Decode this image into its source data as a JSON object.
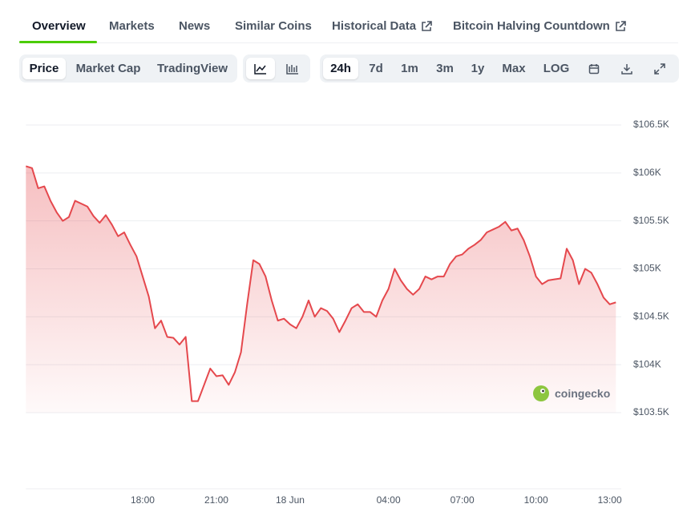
{
  "tabs": [
    "Overview",
    "Markets",
    "News",
    "Similar Coins",
    "Historical Data",
    "Bitcoin Halving Countdown"
  ],
  "chart_modes": [
    "Price",
    "Market Cap",
    "TradingView"
  ],
  "ranges": [
    "24h",
    "7d",
    "1m",
    "3m",
    "1y",
    "Max",
    "LOG"
  ],
  "watermark": "coingecko",
  "chart_data": {
    "type": "line",
    "categories": [
      null,
      null,
      null,
      null,
      null,
      null,
      null,
      null,
      null,
      null,
      null,
      null,
      null,
      null,
      null,
      null,
      null,
      null,
      null,
      "18:00",
      null,
      null,
      null,
      null,
      null,
      null,
      null,
      null,
      null,
      null,
      null,
      "21:00",
      null,
      null,
      null,
      null,
      null,
      null,
      null,
      null,
      null,
      null,
      null,
      "18 Jun",
      null,
      null,
      null,
      null,
      null,
      null,
      null,
      null,
      null,
      null,
      null,
      null,
      null,
      null,
      null,
      "04:00",
      null,
      null,
      null,
      null,
      null,
      null,
      null,
      null,
      null,
      null,
      null,
      "07:00",
      null,
      null,
      null,
      null,
      null,
      null,
      null,
      null,
      null,
      null,
      null,
      "10:00",
      null,
      null,
      null,
      null,
      null,
      null,
      null,
      null,
      null,
      null,
      null,
      "13:00",
      null
    ],
    "values": [
      106070,
      106050,
      105840,
      105860,
      105710,
      105590,
      105500,
      105540,
      105710,
      105680,
      105650,
      105550,
      105480,
      105560,
      105460,
      105340,
      105380,
      105250,
      105130,
      104920,
      104710,
      104380,
      104460,
      104290,
      104280,
      104210,
      104290,
      103620,
      103620,
      103790,
      103960,
      103880,
      103890,
      103790,
      103920,
      104130,
      104630,
      105090,
      105050,
      104920,
      104670,
      104460,
      104480,
      104420,
      104380,
      104500,
      104670,
      104500,
      104590,
      104560,
      104480,
      104340,
      104460,
      104590,
      104630,
      104550,
      104550,
      104500,
      104670,
      104790,
      105000,
      104880,
      104790,
      104730,
      104790,
      104920,
      104890,
      104920,
      104920,
      105050,
      105130,
      105150,
      105210,
      105250,
      105300,
      105380,
      105410,
      105440,
      105490,
      105400,
      105420,
      105300,
      105130,
      104920,
      104840,
      104880,
      104890,
      104900,
      105210,
      105090,
      104840,
      105000,
      104960,
      104840,
      104700,
      104630,
      104650
    ],
    "color": "#e5484d",
    "ylim": [
      103500,
      106500
    ],
    "yticks": [
      {
        "value": 103500,
        "label": "$103.5K"
      },
      {
        "value": 104000,
        "label": "$104K"
      },
      {
        "value": 104500,
        "label": "$104.5K"
      },
      {
        "value": 105000,
        "label": "$105K"
      },
      {
        "value": 105500,
        "label": "$105.5K"
      },
      {
        "value": 106000,
        "label": "$106K"
      },
      {
        "value": 106500,
        "label": "$106.5K"
      }
    ],
    "grid": true
  }
}
